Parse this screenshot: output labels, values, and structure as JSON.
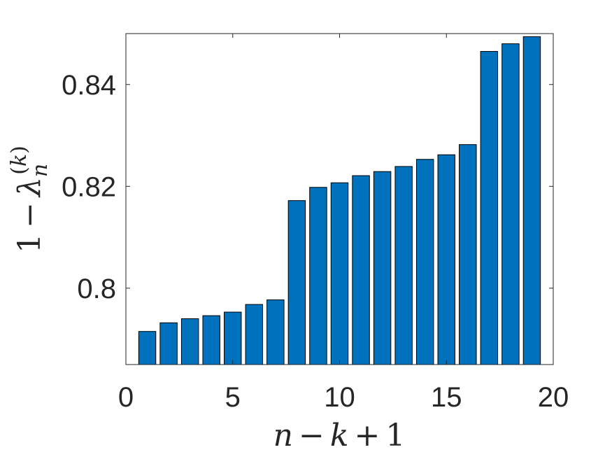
{
  "chart_data": {
    "type": "bar",
    "x": [
      1,
      2,
      3,
      4,
      5,
      6,
      7,
      8,
      9,
      10,
      11,
      12,
      13,
      14,
      15,
      16,
      17,
      18,
      19
    ],
    "values": [
      0.7915,
      0.7932,
      0.794,
      0.7946,
      0.7953,
      0.7968,
      0.7977,
      0.8172,
      0.8198,
      0.8207,
      0.8221,
      0.8229,
      0.8239,
      0.8253,
      0.8262,
      0.8282,
      0.8465,
      0.848,
      0.8494
    ],
    "xlabel": "n − k + 1",
    "ylabel": "1 − λ_n^(k)",
    "xlim": [
      0,
      20
    ],
    "ylim": [
      0.785,
      0.85
    ],
    "xticks": [
      0,
      5,
      10,
      15,
      20
    ],
    "xtick_labels": [
      "0",
      "5",
      "10",
      "15",
      "20"
    ],
    "yticks": [
      0.8,
      0.82,
      0.84
    ],
    "ytick_labels": [
      "0.8",
      "0.82",
      "0.84"
    ],
    "grid": false,
    "legend": "none",
    "bar_color": "#0072BD"
  }
}
